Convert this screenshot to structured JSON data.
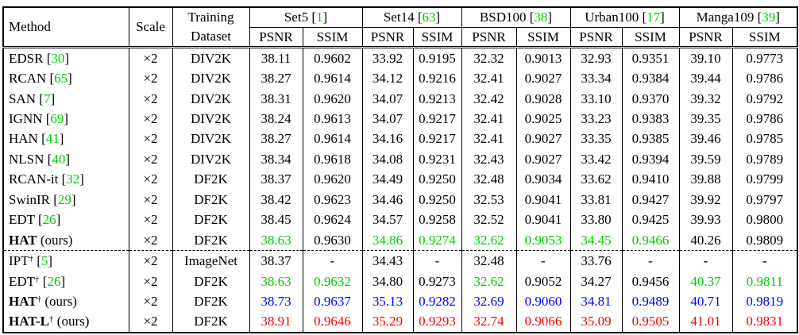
{
  "table": {
    "header": {
      "method": "Method",
      "scale": "Scale",
      "training_line1": "Training",
      "training_line2": "Dataset",
      "psnr": "PSNR",
      "ssim": "SSIM",
      "groups": [
        {
          "name": "Set5",
          "cite": "1"
        },
        {
          "name": "Set14",
          "cite": "63"
        },
        {
          "name": "BSD100",
          "cite": "38"
        },
        {
          "name": "Urban100",
          "cite": "17"
        },
        {
          "name": "Manga109",
          "cite": "39"
        }
      ]
    },
    "symbols": {
      "dagger": "†",
      "ours_label": "(ours)",
      "missing": "-"
    },
    "colors": {
      "best": "#ff0000",
      "second": "#0000ff",
      "third": "#00cc00",
      "citation": "#00cc00",
      "text": "#000000",
      "border": "#000000",
      "background": "#ffffff"
    },
    "rows": [
      {
        "method": "EDSR",
        "cite": "30",
        "scale": "×2",
        "dataset": "DIV2K",
        "values": [
          [
            "38.11",
            "k"
          ],
          [
            "0.9602",
            "k"
          ],
          [
            "33.92",
            "k"
          ],
          [
            "0.9195",
            "k"
          ],
          [
            "32.32",
            "k"
          ],
          [
            "0.9013",
            "k"
          ],
          [
            "32.93",
            "k"
          ],
          [
            "0.9351",
            "k"
          ],
          [
            "39.10",
            "k"
          ],
          [
            "0.9773",
            "k"
          ]
        ]
      },
      {
        "method": "RCAN",
        "cite": "65",
        "scale": "×2",
        "dataset": "DIV2K",
        "values": [
          [
            "38.27",
            "k"
          ],
          [
            "0.9614",
            "k"
          ],
          [
            "34.12",
            "k"
          ],
          [
            "0.9216",
            "k"
          ],
          [
            "32.41",
            "k"
          ],
          [
            "0.9027",
            "k"
          ],
          [
            "33.34",
            "k"
          ],
          [
            "0.9384",
            "k"
          ],
          [
            "39.44",
            "k"
          ],
          [
            "0.9786",
            "k"
          ]
        ]
      },
      {
        "method": "SAN",
        "cite": "7",
        "scale": "×2",
        "dataset": "DIV2K",
        "values": [
          [
            "38.31",
            "k"
          ],
          [
            "0.9620",
            "k"
          ],
          [
            "34.07",
            "k"
          ],
          [
            "0.9213",
            "k"
          ],
          [
            "32.42",
            "k"
          ],
          [
            "0.9028",
            "k"
          ],
          [
            "33.10",
            "k"
          ],
          [
            "0.9370",
            "k"
          ],
          [
            "39.32",
            "k"
          ],
          [
            "0.9792",
            "k"
          ]
        ]
      },
      {
        "method": "IGNN",
        "cite": "69",
        "scale": "×2",
        "dataset": "DIV2K",
        "values": [
          [
            "38.24",
            "k"
          ],
          [
            "0.9613",
            "k"
          ],
          [
            "34.07",
            "k"
          ],
          [
            "0.9217",
            "k"
          ],
          [
            "32.41",
            "k"
          ],
          [
            "0.9025",
            "k"
          ],
          [
            "33.23",
            "k"
          ],
          [
            "0.9383",
            "k"
          ],
          [
            "39.35",
            "k"
          ],
          [
            "0.9786",
            "k"
          ]
        ]
      },
      {
        "method": "HAN",
        "cite": "41",
        "scale": "×2",
        "dataset": "DIV2K",
        "values": [
          [
            "38.27",
            "k"
          ],
          [
            "0.9614",
            "k"
          ],
          [
            "34.16",
            "k"
          ],
          [
            "0.9217",
            "k"
          ],
          [
            "32.41",
            "k"
          ],
          [
            "0.9027",
            "k"
          ],
          [
            "33.35",
            "k"
          ],
          [
            "0.9385",
            "k"
          ],
          [
            "39.46",
            "k"
          ],
          [
            "0.9785",
            "k"
          ]
        ]
      },
      {
        "method": "NLSN",
        "cite": "40",
        "scale": "×2",
        "dataset": "DIV2K",
        "values": [
          [
            "38.34",
            "k"
          ],
          [
            "0.9618",
            "k"
          ],
          [
            "34.08",
            "k"
          ],
          [
            "0.9231",
            "k"
          ],
          [
            "32.43",
            "k"
          ],
          [
            "0.9027",
            "k"
          ],
          [
            "33.42",
            "k"
          ],
          [
            "0.9394",
            "k"
          ],
          [
            "39.59",
            "k"
          ],
          [
            "0.9789",
            "k"
          ]
        ]
      },
      {
        "method": "RCAN-it",
        "cite": "32",
        "scale": "×2",
        "dataset": "DF2K",
        "values": [
          [
            "38.37",
            "k"
          ],
          [
            "0.9620",
            "k"
          ],
          [
            "34.49",
            "k"
          ],
          [
            "0.9250",
            "k"
          ],
          [
            "32.48",
            "k"
          ],
          [
            "0.9034",
            "k"
          ],
          [
            "33.62",
            "k"
          ],
          [
            "0.9410",
            "k"
          ],
          [
            "39.88",
            "k"
          ],
          [
            "0.9799",
            "k"
          ]
        ]
      },
      {
        "method": "SwinIR",
        "cite": "29",
        "scale": "×2",
        "dataset": "DF2K",
        "values": [
          [
            "38.42",
            "k"
          ],
          [
            "0.9623",
            "k"
          ],
          [
            "34.46",
            "k"
          ],
          [
            "0.9250",
            "k"
          ],
          [
            "32.53",
            "k"
          ],
          [
            "0.9041",
            "k"
          ],
          [
            "33.81",
            "k"
          ],
          [
            "0.9427",
            "k"
          ],
          [
            "39.92",
            "k"
          ],
          [
            "0.9797",
            "k"
          ]
        ]
      },
      {
        "method": "EDT",
        "cite": "26",
        "scale": "×2",
        "dataset": "DF2K",
        "values": [
          [
            "38.45",
            "k"
          ],
          [
            "0.9624",
            "k"
          ],
          [
            "34.57",
            "k"
          ],
          [
            "0.9258",
            "k"
          ],
          [
            "32.52",
            "k"
          ],
          [
            "0.9041",
            "k"
          ],
          [
            "33.80",
            "k"
          ],
          [
            "0.9425",
            "k"
          ],
          [
            "39.93",
            "k"
          ],
          [
            "0.9800",
            "k"
          ]
        ]
      },
      {
        "method": "HAT",
        "bold": true,
        "ours": true,
        "scale": "×2",
        "dataset": "DF2K",
        "values": [
          [
            "38.63",
            "g"
          ],
          [
            "0.9630",
            "k"
          ],
          [
            "34.86",
            "g"
          ],
          [
            "0.9274",
            "g"
          ],
          [
            "32.62",
            "g"
          ],
          [
            "0.9053",
            "g"
          ],
          [
            "34.45",
            "g"
          ],
          [
            "0.9466",
            "g"
          ],
          [
            "40.26",
            "k"
          ],
          [
            "0.9809",
            "k"
          ]
        ]
      },
      {
        "method": "IPT",
        "dagger": true,
        "cite": "5",
        "scale": "×2",
        "dataset": "ImageNet",
        "dashed_top": true,
        "values": [
          [
            "38.37",
            "k"
          ],
          [
            "-",
            "k"
          ],
          [
            "34.43",
            "k"
          ],
          [
            "-",
            "k"
          ],
          [
            "32.48",
            "k"
          ],
          [
            "-",
            "k"
          ],
          [
            "33.76",
            "k"
          ],
          [
            "-",
            "k"
          ],
          [
            "-",
            "k"
          ],
          [
            "-",
            "k"
          ]
        ]
      },
      {
        "method": "EDT",
        "dagger": true,
        "cite": "26",
        "scale": "×2",
        "dataset": "DF2K",
        "values": [
          [
            "38.63",
            "g"
          ],
          [
            "0.9632",
            "g"
          ],
          [
            "34.80",
            "k"
          ],
          [
            "0.9273",
            "k"
          ],
          [
            "32.62",
            "g"
          ],
          [
            "0.9052",
            "k"
          ],
          [
            "34.27",
            "k"
          ],
          [
            "0.9456",
            "k"
          ],
          [
            "40.37",
            "g"
          ],
          [
            "0.9811",
            "g"
          ]
        ]
      },
      {
        "method": "HAT",
        "dagger": true,
        "bold": true,
        "ours": true,
        "scale": "×2",
        "dataset": "DF2K",
        "values": [
          [
            "38.73",
            "b"
          ],
          [
            "0.9637",
            "b"
          ],
          [
            "35.13",
            "b"
          ],
          [
            "0.9282",
            "b"
          ],
          [
            "32.69",
            "b"
          ],
          [
            "0.9060",
            "b"
          ],
          [
            "34.81",
            "b"
          ],
          [
            "0.9489",
            "b"
          ],
          [
            "40.71",
            "b"
          ],
          [
            "0.9819",
            "b"
          ]
        ]
      },
      {
        "method": "HAT-L",
        "dagger": true,
        "bold": true,
        "ours": true,
        "scale": "×2",
        "dataset": "DF2K",
        "values": [
          [
            "38.91",
            "r"
          ],
          [
            "0.9646",
            "r"
          ],
          [
            "35.29",
            "r"
          ],
          [
            "0.9293",
            "r"
          ],
          [
            "32.74",
            "r"
          ],
          [
            "0.9066",
            "r"
          ],
          [
            "35.09",
            "r"
          ],
          [
            "0.9505",
            "r"
          ],
          [
            "41.01",
            "r"
          ],
          [
            "0.9831",
            "r"
          ]
        ]
      }
    ]
  }
}
